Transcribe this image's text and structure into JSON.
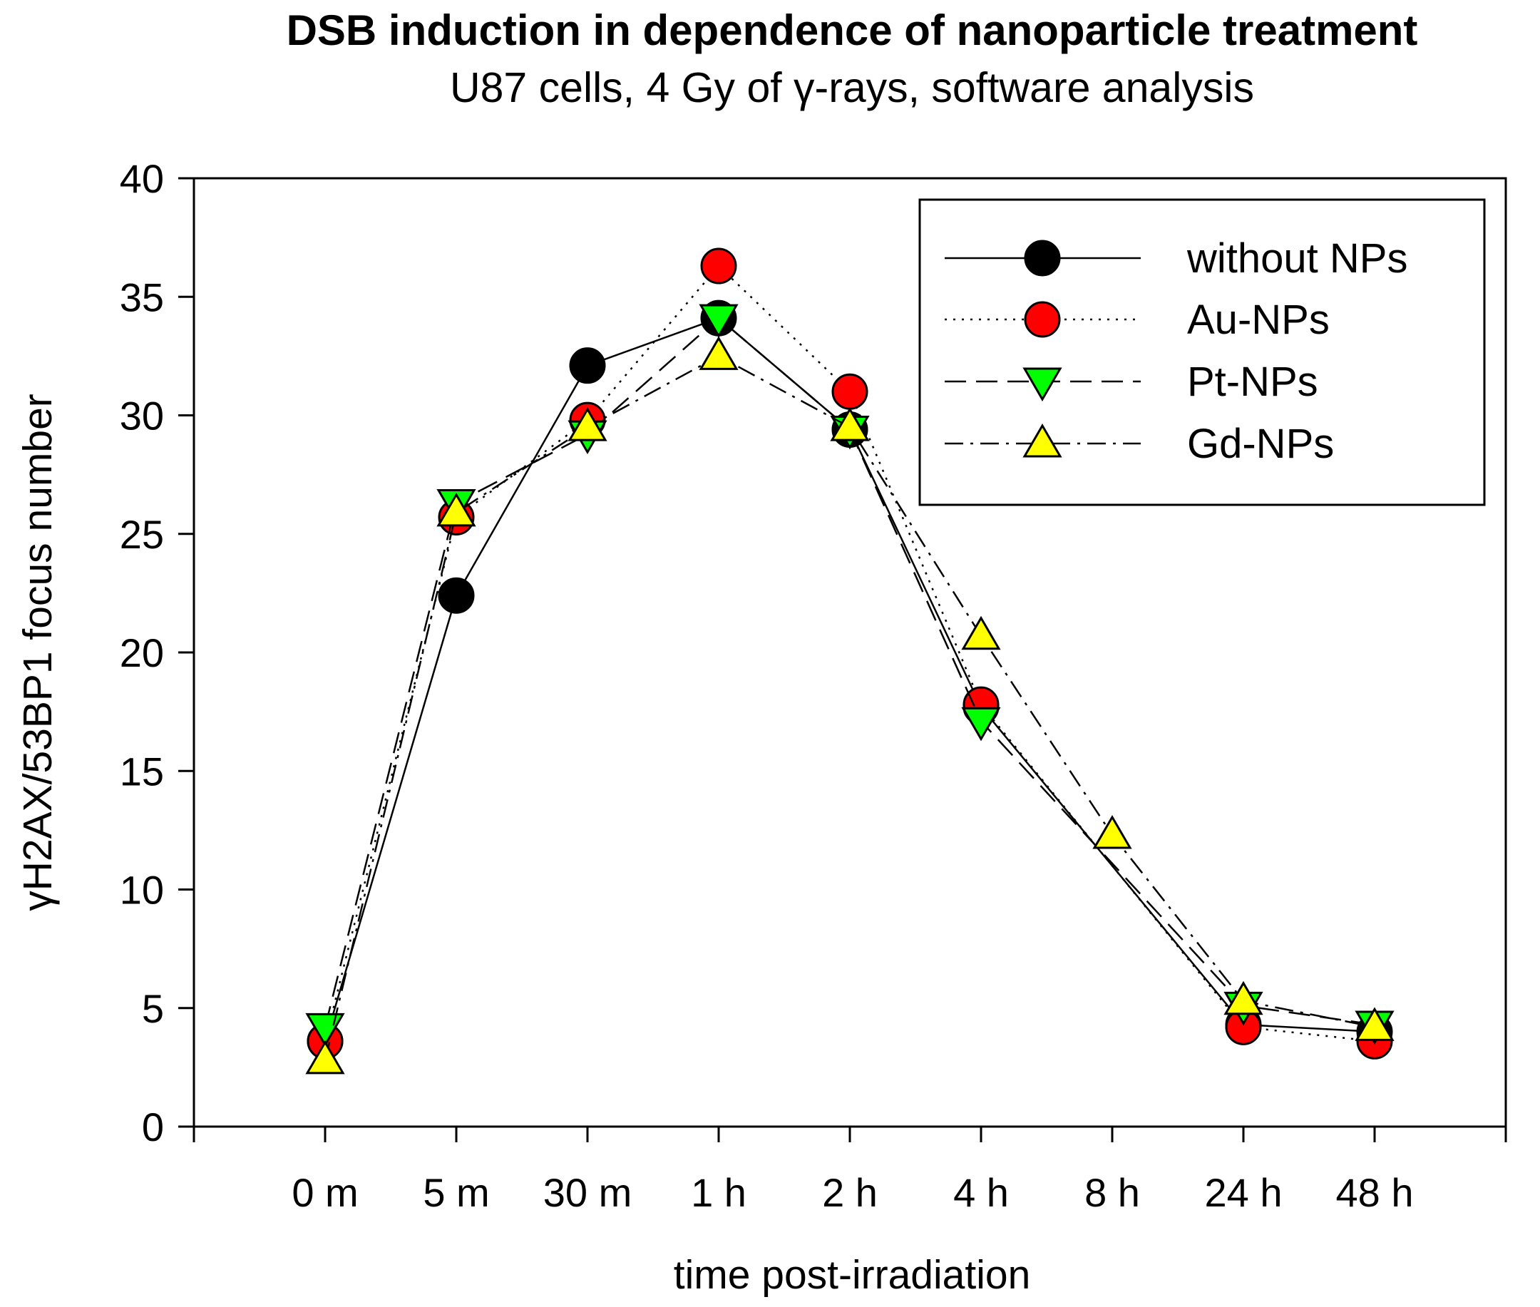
{
  "chart_data": {
    "type": "line",
    "title": "DSB induction in dependence of nanoparticle treatment",
    "subtitle": "U87 cells, 4 Gy of γ-rays, software analysis",
    "xlabel": "time post-irradiation",
    "ylabel": "γH2AX/53BP1 focus number",
    "categories": [
      "0 m",
      "5 m",
      "30 m",
      "1 h",
      "2 h",
      "4 h",
      "8 h",
      "24 h",
      "48 h"
    ],
    "ylim": [
      0,
      40
    ],
    "yticks": [
      "0",
      "5",
      "10",
      "15",
      "20",
      "25",
      "30",
      "35",
      "40"
    ],
    "grid": false,
    "legend_position": "top-right",
    "series": [
      {
        "name": "without NPs",
        "values": [
          3.6,
          22.4,
          32.1,
          34.1,
          29.4,
          17.7,
          null,
          4.3,
          4.0
        ],
        "marker": "circle",
        "line": "solid",
        "color": "#000000"
      },
      {
        "name": "Au-NPs",
        "values": [
          3.6,
          25.7,
          29.8,
          36.3,
          31.0,
          17.8,
          null,
          4.2,
          3.6
        ],
        "marker": "circle",
        "line": "dotted",
        "color": "#ff0000"
      },
      {
        "name": "Pt-NPs",
        "values": [
          4.2,
          26.3,
          29.2,
          34.1,
          29.4,
          17.1,
          null,
          5.1,
          4.3
        ],
        "marker": "triangle-down",
        "line": "dashed",
        "color": "#00ff00"
      },
      {
        "name": "Gd-NPs",
        "values": [
          2.8,
          25.9,
          29.5,
          32.5,
          29.5,
          20.7,
          12.3,
          5.3,
          4.2
        ],
        "marker": "triangle-up",
        "line": "dash-dot",
        "color": "#ffff00"
      }
    ]
  }
}
